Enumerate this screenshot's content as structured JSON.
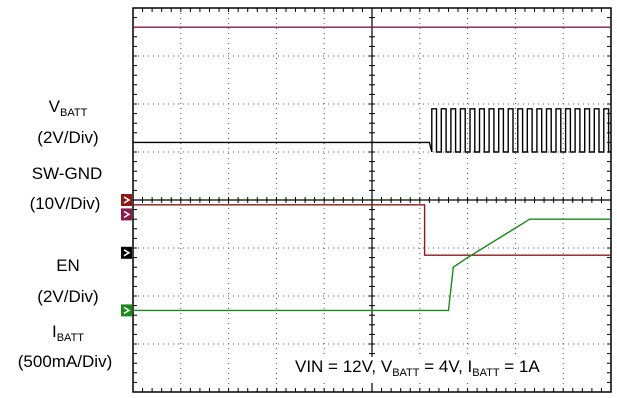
{
  "chart_data": {
    "type": "line",
    "title": "",
    "x": {
      "divisions": 10
    },
    "y": {
      "divisions": 8
    },
    "grid": true,
    "annotation": {
      "parts": [
        "VIN = 12V, V",
        "BATT",
        " = 4V, I",
        "BATT",
        " = 1A"
      ]
    },
    "series": [
      {
        "name_main": "V",
        "name_sub": "BATT",
        "scale": "(2V/Div)",
        "color": "#8b1a4a",
        "marker_level": 3.7,
        "points": [
          [
            0,
            7.6
          ],
          [
            10,
            7.6
          ]
        ]
      },
      {
        "name_main": "SW-GND",
        "scale": "(10V/Div)",
        "color": "#000000",
        "marker_level": 2.9,
        "points": [
          [
            0,
            5.2
          ],
          [
            6.2,
            5.2
          ]
        ],
        "switching": {
          "start": 6.25,
          "end": 10,
          "period": 0.2,
          "low": 5.0,
          "high": 5.9
        }
      },
      {
        "name_main": "EN",
        "scale": "(2V/Div)",
        "color": "#8b1a1a",
        "marker_level": 4.0,
        "points": [
          [
            0,
            3.9
          ],
          [
            6.1,
            3.9
          ],
          [
            6.1,
            2.85
          ],
          [
            10,
            2.85
          ]
        ]
      },
      {
        "name_main": "I",
        "name_sub": "BATT",
        "scale": "(500mA/Div)",
        "color": "#1a8a1a",
        "marker_level": 1.7,
        "points": [
          [
            0,
            1.7
          ],
          [
            6.6,
            1.7
          ],
          [
            6.7,
            2.6
          ],
          [
            7.0,
            2.8
          ],
          [
            8.3,
            3.6
          ],
          [
            10,
            3.6
          ]
        ]
      }
    ]
  }
}
